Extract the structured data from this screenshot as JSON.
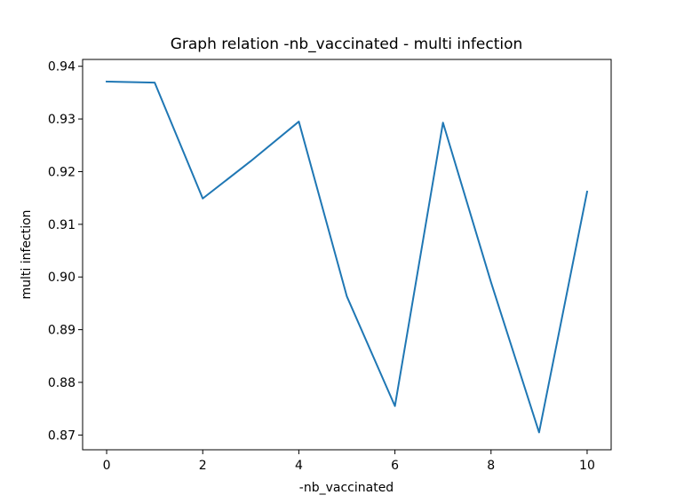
{
  "chart_data": {
    "type": "line",
    "title": "Graph relation -nb_vaccinated - multi infection",
    "xlabel": "-nb_vaccinated",
    "ylabel": "multi infection",
    "xlim": [
      -0.5,
      10.5
    ],
    "ylim": [
      0.8672,
      0.9413
    ],
    "xticks": [
      0,
      2,
      4,
      6,
      8,
      10
    ],
    "xtick_labels": [
      "0",
      "2",
      "4",
      "6",
      "8",
      "10"
    ],
    "yticks": [
      0.87,
      0.88,
      0.89,
      0.9,
      0.91,
      0.92,
      0.93,
      0.94
    ],
    "ytick_labels": [
      "0.87",
      "0.88",
      "0.89",
      "0.90",
      "0.91",
      "0.92",
      "0.93",
      "0.94"
    ],
    "grid": false,
    "series": [
      {
        "color": "#1f77b4",
        "x": [
          0,
          1,
          2,
          3,
          4,
          5,
          6,
          7,
          8,
          9,
          10
        ],
        "y": [
          0.9371,
          0.9369,
          0.9149,
          0.922,
          0.9295,
          0.8963,
          0.8755,
          0.9293,
          0.899,
          0.8705,
          0.9162
        ]
      }
    ]
  }
}
